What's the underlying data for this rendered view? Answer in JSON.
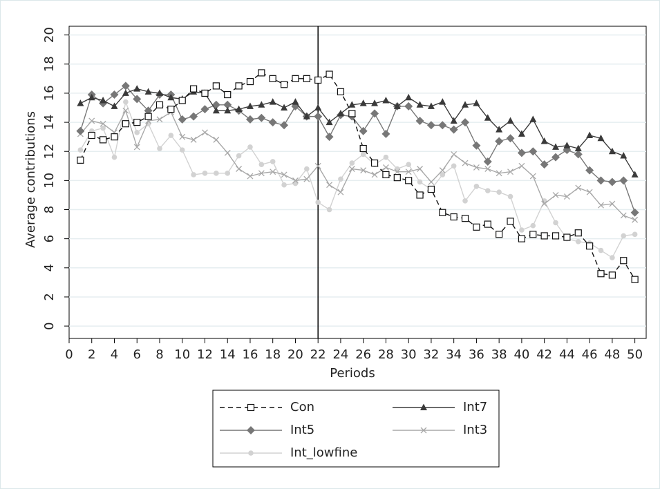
{
  "chart_data": {
    "type": "line",
    "xlabel": "Periods",
    "ylabel": "Average contributions",
    "x": [
      1,
      2,
      3,
      4,
      5,
      6,
      7,
      8,
      9,
      10,
      11,
      12,
      13,
      14,
      15,
      16,
      17,
      18,
      19,
      20,
      21,
      22,
      23,
      24,
      25,
      26,
      27,
      28,
      29,
      30,
      31,
      32,
      33,
      34,
      35,
      36,
      37,
      38,
      39,
      40,
      41,
      42,
      43,
      44,
      45,
      46,
      47,
      48,
      49,
      50
    ],
    "xlim": [
      0,
      51
    ],
    "xticks": [
      0,
      2,
      4,
      6,
      8,
      10,
      12,
      14,
      16,
      18,
      20,
      22,
      24,
      26,
      28,
      30,
      32,
      34,
      36,
      38,
      40,
      42,
      44,
      46,
      48,
      50
    ],
    "ylim": [
      -0.85,
      20.6
    ],
    "yticks": [
      0,
      2,
      4,
      6,
      8,
      10,
      12,
      14,
      16,
      18,
      20
    ],
    "grid": true,
    "vline": 22,
    "legend": "bottom",
    "series": [
      {
        "name": "Con",
        "color": "#111111",
        "marker": "hollow-square",
        "dash": true,
        "values": [
          11.4,
          13.1,
          12.8,
          13.0,
          13.9,
          14.0,
          14.4,
          15.2,
          14.9,
          15.5,
          16.3,
          16.0,
          16.5,
          15.9,
          16.5,
          16.8,
          17.4,
          17.0,
          16.6,
          17.0,
          17.0,
          16.9,
          17.3,
          16.1,
          14.6,
          12.2,
          11.2,
          10.4,
          10.2,
          10.0,
          9.0,
          9.4,
          7.8,
          7.5,
          7.4,
          6.8,
          7.0,
          6.3,
          7.2,
          6.0,
          6.3,
          6.2,
          6.2,
          6.1,
          6.4,
          5.5,
          3.6,
          3.5,
          4.5,
          3.2
        ]
      },
      {
        "name": "Int7",
        "color": "#3a3a3a",
        "marker": "triangle",
        "dash": false,
        "values": [
          15.3,
          15.7,
          15.5,
          15.1,
          16.0,
          16.3,
          16.1,
          16.0,
          15.7,
          15.6,
          16.1,
          16.0,
          14.8,
          14.8,
          14.9,
          15.1,
          15.2,
          15.4,
          15.0,
          15.4,
          14.4,
          15.0,
          14.0,
          14.6,
          15.2,
          15.3,
          15.3,
          15.5,
          15.1,
          15.7,
          15.2,
          15.1,
          15.4,
          14.1,
          15.2,
          15.3,
          14.3,
          13.5,
          14.1,
          13.2,
          14.2,
          12.7,
          12.3,
          12.4,
          12.2,
          13.1,
          12.9,
          12.0,
          11.7,
          10.4
        ]
      },
      {
        "name": "Int5",
        "color": "#777777",
        "marker": "diamond",
        "dash": false,
        "values": [
          13.4,
          15.9,
          15.3,
          15.9,
          16.5,
          15.6,
          14.8,
          15.9,
          15.9,
          14.2,
          14.4,
          14.9,
          15.2,
          15.2,
          14.8,
          14.2,
          14.3,
          14.0,
          13.8,
          15.1,
          14.4,
          14.4,
          13.0,
          14.5,
          14.4,
          13.4,
          14.6,
          13.2,
          15.1,
          15.1,
          14.1,
          13.8,
          13.8,
          13.5,
          14.0,
          12.4,
          11.3,
          12.7,
          12.9,
          11.9,
          12.0,
          11.1,
          11.6,
          12.1,
          11.8,
          10.7,
          10.0,
          9.9,
          10.0,
          7.8
        ]
      },
      {
        "name": "Int3",
        "color": "#a8a8a8",
        "marker": "x",
        "dash": false,
        "values": [
          13.2,
          14.1,
          13.9,
          13.3,
          14.8,
          12.3,
          14.1,
          14.2,
          14.7,
          13.0,
          12.8,
          13.3,
          12.8,
          11.9,
          10.8,
          10.3,
          10.5,
          10.6,
          10.4,
          10.0,
          10.1,
          11.0,
          9.7,
          9.2,
          10.8,
          10.7,
          10.4,
          10.9,
          10.6,
          10.6,
          10.8,
          9.9,
          10.7,
          11.8,
          11.2,
          10.9,
          10.8,
          10.5,
          10.6,
          11.0,
          10.3,
          8.4,
          9.0,
          8.9,
          9.5,
          9.2,
          8.3,
          8.4,
          7.6,
          7.3
        ]
      },
      {
        "name": "Int_lowfine",
        "color": "#d2d2d2",
        "marker": "circle",
        "dash": false,
        "values": [
          12.1,
          13.4,
          13.6,
          11.6,
          15.4,
          13.3,
          13.9,
          12.2,
          13.1,
          12.1,
          10.4,
          10.5,
          10.5,
          10.5,
          11.7,
          12.3,
          11.1,
          11.3,
          9.7,
          9.8,
          10.8,
          8.5,
          8.0,
          10.1,
          11.2,
          11.8,
          11.1,
          11.6,
          10.8,
          11.1,
          9.9,
          9.4,
          10.4,
          11.0,
          8.6,
          9.6,
          9.3,
          9.2,
          8.9,
          6.6,
          6.9,
          8.6,
          7.1,
          6.0,
          5.8,
          5.7,
          5.2,
          4.7,
          6.2,
          6.3
        ]
      }
    ]
  }
}
